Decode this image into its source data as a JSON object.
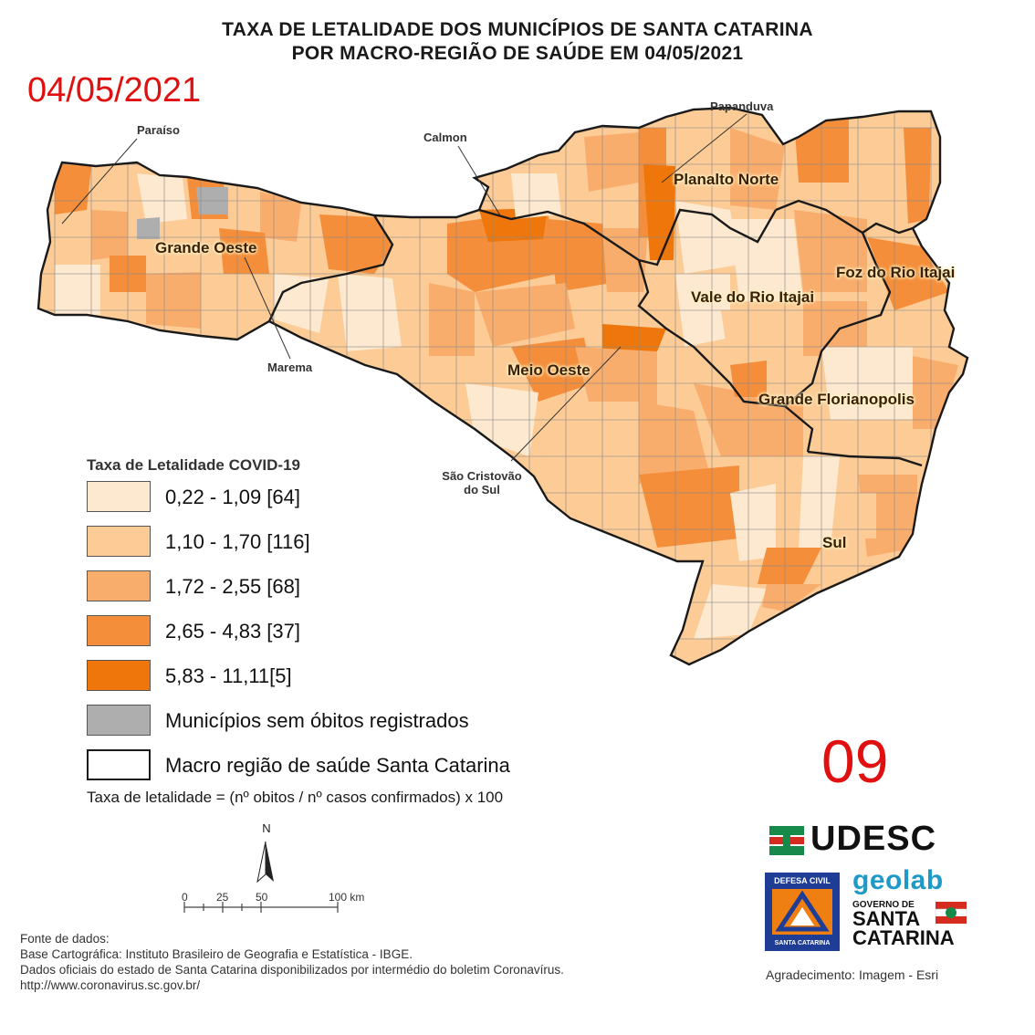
{
  "title": {
    "line1": "TAXA DE LETALIDADE DOS MUNICÍPIOS DE SANTA CATARINA",
    "line2": "POR MACRO-REGIÃO DE SAÚDE EM 04/05/2021"
  },
  "date_stamp": "04/05/2021",
  "page_number": "09",
  "regions": {
    "grande_oeste": "Grande Oeste",
    "planalto_norte": "Planalto Norte",
    "foz_do_rio_itajai": "Foz do Rio Itajai",
    "vale_do_rio_itajai": "Vale do Rio Itajai",
    "meio_oeste": "Meio Oeste",
    "grande_florianopolis": "Grande Florianopolis",
    "sul": "Sul"
  },
  "callouts": {
    "paraiso": "Paraíso",
    "calmon": "Calmon",
    "papanduva": "Papanduva",
    "marema": "Marema",
    "sao_cristovao_line1": "São Cristovão",
    "sao_cristovao_line2": "do Sul"
  },
  "legend": {
    "title": "Taxa de Letalidade COVID-19",
    "classes": [
      {
        "label": "0,22 - 1,09 [64]",
        "color": "#fde9cf"
      },
      {
        "label": "1,10 - 1,70 [116]",
        "color": "#fccb96"
      },
      {
        "label": "1,72 - 2,55 [68]",
        "color": "#f9ad6c"
      },
      {
        "label": "2,65 - 4,83 [37]",
        "color": "#f48e3a"
      },
      {
        "label": "5,83 - 11,11[5]",
        "color": "#ee760a"
      },
      {
        "label": "Municípios sem óbitos registrados",
        "color": "#aeaeae"
      },
      {
        "label": "Macro região de saúde Santa Catarina",
        "color": "#ffffff"
      }
    ]
  },
  "formula": "Taxa de letalidade = (nº obitos / nº casos confirmados) x 100",
  "north_label": "N",
  "scale": {
    "ticks": [
      "0",
      "25",
      "50",
      "100 km"
    ]
  },
  "sources": {
    "line1": "Fonte de dados:",
    "line2": "Base Cartográfica: Instituto Brasileiro de Geografia e Estatística - IBGE.",
    "line3": "Dados oficiais do estado de Santa Catarina disponibilizados por intermédio do boletim Coronavírus.",
    "line4": "http://www.coronavirus.sc.gov.br/"
  },
  "acknowledgement": "Agradecimento: Imagem - Esri",
  "logos": {
    "udesc": "UDESC",
    "defesa_top": "DEFESA CIVIL",
    "defesa_bottom": "SANTA CATARINA",
    "geolab": "geolab",
    "gov_small": "GOVERNO DE",
    "gov_big_1": "SANTA",
    "gov_big_2": "CATARINA"
  }
}
